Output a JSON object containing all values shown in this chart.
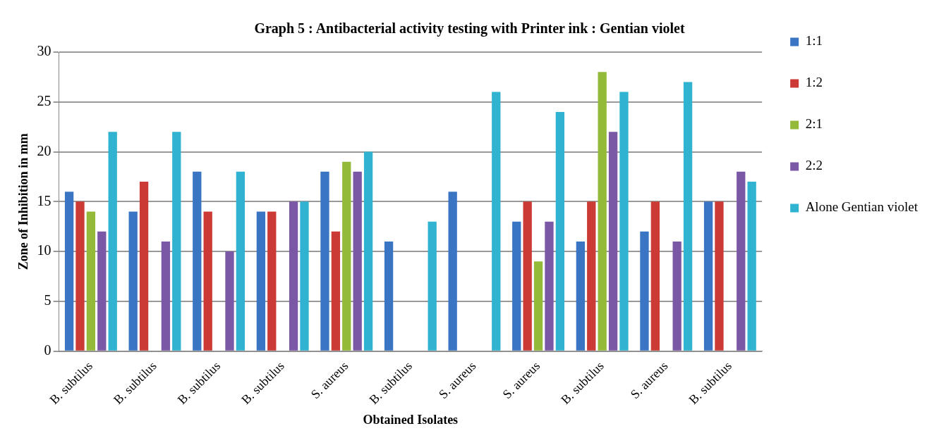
{
  "chart_data": {
    "type": "bar",
    "title": "Graph 5 : Antibacterial activity testing with Printer ink : Gentian violet",
    "xlabel": "Obtained Isolates",
    "ylabel": "Zone of Inhibition in mm",
    "categories": [
      "B. subtilus",
      "B. subtilus",
      "B. subtilus",
      "B. subtilus",
      "S. aureus",
      "B. subtilus",
      "S. aureus",
      "S. aureus",
      "B. subtilus",
      "S. aureus",
      "B. subtilus"
    ],
    "series": [
      {
        "name": "1:1",
        "color": "#3a75c4",
        "values": [
          16,
          14,
          18,
          14,
          18,
          11,
          16,
          13,
          11,
          12,
          15
        ]
      },
      {
        "name": "1:2",
        "color": "#cc3a35",
        "values": [
          15,
          17,
          14,
          14,
          12,
          0,
          0,
          15,
          15,
          15,
          15
        ]
      },
      {
        "name": "2:1",
        "color": "#94ba3a",
        "values": [
          14,
          0,
          0,
          0,
          19,
          0,
          0,
          9,
          28,
          0,
          0
        ]
      },
      {
        "name": "2:2",
        "color": "#7b58a6",
        "values": [
          12,
          11,
          10,
          15,
          18,
          0,
          0,
          13,
          22,
          11,
          18
        ]
      },
      {
        "name": "Alone Gentian violet",
        "color": "#2fb3d1",
        "values": [
          22,
          22,
          18,
          15,
          20,
          13,
          26,
          24,
          26,
          27,
          17
        ]
      }
    ],
    "ylim": [
      0,
      30
    ],
    "yticks": [
      0,
      5,
      10,
      15,
      20,
      25,
      30
    ],
    "grid": "y",
    "legend": "right"
  }
}
